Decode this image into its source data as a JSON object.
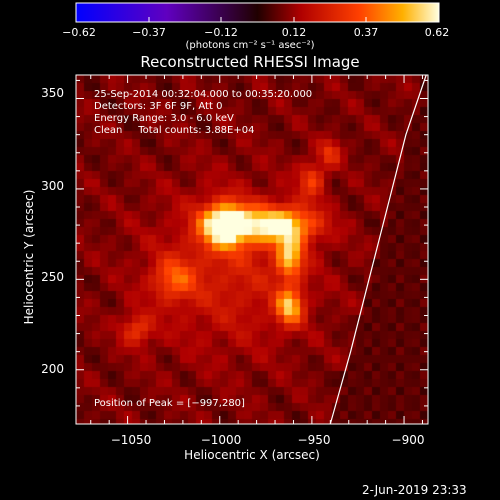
{
  "colorbar": {
    "ticks": [
      "−0.62",
      "−0.37",
      "−0.12",
      "0.12",
      "0.37",
      "0.62"
    ],
    "unit": "(photons cm⁻² s⁻¹ asec⁻²)",
    "range": [
      -0.62,
      0.62
    ]
  },
  "chart_data": {
    "type": "heatmap",
    "title": "Reconstructed RHESSI Image",
    "xlabel": "Heliocentric X (arcsec)",
    "ylabel": "Heliocentric Y (arcsec)",
    "xlim": [
      -1078,
      -887
    ],
    "ylim": [
      170,
      363
    ],
    "x_ticks": [
      "−1050",
      "−1000",
      "−950",
      "−900"
    ],
    "x_tick_values": [
      -1050,
      -1000,
      -950,
      -900
    ],
    "y_ticks": [
      "200",
      "250",
      "300",
      "350"
    ],
    "y_tick_values": [
      200,
      250,
      300,
      350
    ],
    "annotations": [
      "25-Sep-2014 00:32:04.000 to 00:35:20.000",
      "Detectors: 3F 6F 9F, Att 0",
      "Energy Range: 3.0 - 6.0 keV",
      "Clean     Total counts: 3.88E+04"
    ],
    "peak_text": "Position of Peak = [−997,280]",
    "peak": [
      -997,
      280
    ],
    "sources": [
      {
        "x": -997,
        "y": 280,
        "sx": 9,
        "sy": 8,
        "amp": 0.62
      },
      {
        "x": -968,
        "y": 280,
        "sx": 14,
        "sy": 7,
        "amp": 0.5
      },
      {
        "x": -962,
        "y": 262,
        "sx": 5,
        "sy": 8,
        "amp": 0.38
      },
      {
        "x": -962,
        "y": 235,
        "sx": 5,
        "sy": 7,
        "amp": 0.4
      },
      {
        "x": -1025,
        "y": 250,
        "sx": 8,
        "sy": 8,
        "amp": 0.22
      },
      {
        "x": -1045,
        "y": 222,
        "sx": 6,
        "sy": 6,
        "amp": 0.2
      },
      {
        "x": -950,
        "y": 305,
        "sx": 5,
        "sy": 7,
        "amp": 0.22
      },
      {
        "x": -940,
        "y": 320,
        "sx": 4,
        "sy": 5,
        "amp": 0.2
      },
      {
        "x": -995,
        "y": 255,
        "sx": 30,
        "sy": 30,
        "amp": 0.14
      }
    ],
    "limb": [
      [
        -940,
        170
      ],
      [
        -929,
        210
      ],
      [
        -919,
        250
      ],
      [
        -909,
        290
      ],
      [
        -899,
        330
      ],
      [
        -888,
        363
      ]
    ]
  },
  "footer": {
    "date": "2-Jun-2019 23:33"
  }
}
